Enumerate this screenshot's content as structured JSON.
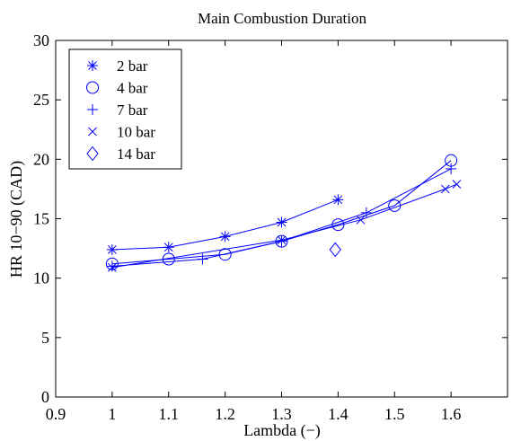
{
  "chart_data": {
    "type": "line",
    "title": "Main Combustion Duration",
    "xlabel": "Lambda (−)",
    "ylabel": "HR 10−90 (CAD)",
    "xlim": [
      0.9,
      1.7
    ],
    "ylim": [
      0,
      30
    ],
    "x_ticks": [
      "0.9",
      "1",
      "1.1",
      "1.2",
      "1.3",
      "1.4",
      "1.5",
      "1.6"
    ],
    "y_ticks": [
      "0",
      "5",
      "10",
      "15",
      "20",
      "25",
      "30"
    ],
    "grid": false,
    "legend_position": "top-left",
    "color": "#0000ff",
    "series": [
      {
        "name": "2 bar",
        "marker": "asterisk",
        "x": [
          1.0,
          1.1,
          1.2,
          1.3,
          1.4
        ],
        "y": [
          12.4,
          12.6,
          13.5,
          14.7,
          16.6
        ]
      },
      {
        "name": "4 bar",
        "marker": "circle",
        "x": [
          1.0,
          1.1,
          1.2,
          1.3,
          1.4,
          1.5,
          1.6
        ],
        "y": [
          11.2,
          11.6,
          12.0,
          13.1,
          14.5,
          16.1,
          19.9
        ]
      },
      {
        "name": "7 bar",
        "marker": "plus",
        "x": [
          1.0,
          1.16,
          1.3,
          1.45,
          1.6
        ],
        "y": [
          11.0,
          11.6,
          13.1,
          15.5,
          19.2
        ]
      },
      {
        "name": "10 bar",
        "marker": "cross",
        "x": [
          1.0,
          1.3,
          1.44,
          1.59,
          1.61
        ],
        "y": [
          10.9,
          13.2,
          14.9,
          17.5,
          17.9
        ]
      },
      {
        "name": "14 bar",
        "marker": "diamond",
        "x": [
          1.395
        ],
        "y": [
          12.4
        ]
      }
    ]
  }
}
